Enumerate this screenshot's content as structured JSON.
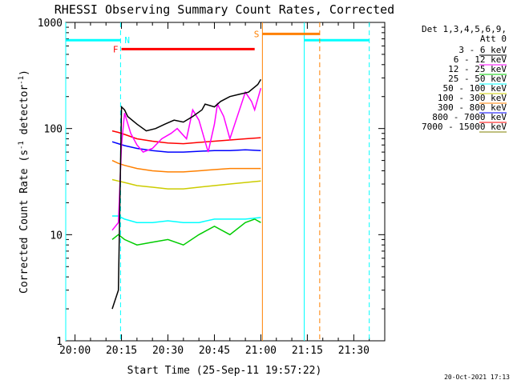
{
  "chart_data": {
    "type": "line",
    "title": "RHESSI Observing Summary Count Rates, Corrected",
    "xlabel": "Start Time (25-Sep-11 19:57:22)",
    "ylabel": "Corrected Count Rate (s⁻¹ detector⁻¹)",
    "ylabel_parts": {
      "a": "Corrected Count Rate (s",
      "exp1": "-1",
      "b": " detector",
      "exp2": "-1",
      "c": ")"
    },
    "footer": "20-Oct-2021 17:13",
    "y_scale": "log",
    "ylim": [
      1,
      1000
    ],
    "xlim_minutes": [
      -3,
      100
    ],
    "x_ticks": [
      {
        "min": 0,
        "label": "20:00"
      },
      {
        "min": 15,
        "label": "20:15"
      },
      {
        "min": 30,
        "label": "20:30"
      },
      {
        "min": 45,
        "label": "20:45"
      },
      {
        "min": 60,
        "label": "21:00"
      },
      {
        "min": 75,
        "label": "21:15"
      },
      {
        "min": 90,
        "label": "21:30"
      }
    ],
    "y_ticks": [
      {
        "v": 1,
        "label": "1"
      },
      {
        "v": 10,
        "label": "10"
      },
      {
        "v": 100,
        "label": "100"
      },
      {
        "v": 1000,
        "label": "1000"
      }
    ],
    "legend": {
      "header": [
        "Det 1,3,4,5,6,9,",
        "Att 0"
      ],
      "position": "right"
    },
    "series": [
      {
        "name": "3 - 6 keV",
        "color": "#000000",
        "x": [
          12,
          14,
          15,
          16,
          17,
          20,
          23,
          26,
          29,
          32,
          35,
          38,
          41,
          42,
          45,
          47,
          50,
          53,
          56,
          59,
          60
        ],
        "y": [
          2,
          3,
          160,
          150,
          130,
          110,
          95,
          100,
          110,
          120,
          115,
          130,
          150,
          170,
          160,
          180,
          200,
          210,
          220,
          260,
          290
        ]
      },
      {
        "name": "6 - 12 keV",
        "color": "#ff00ff",
        "x": [
          12,
          14,
          15,
          16,
          18,
          20,
          22,
          25,
          28,
          31,
          33,
          36,
          38,
          40,
          43,
          45,
          46,
          48,
          50,
          52,
          55,
          57,
          58,
          60
        ],
        "y": [
          11,
          13,
          70,
          140,
          90,
          70,
          60,
          65,
          80,
          90,
          100,
          80,
          150,
          120,
          60,
          110,
          170,
          130,
          80,
          120,
          220,
          180,
          150,
          240
        ]
      },
      {
        "name": "12 - 25 keV",
        "color": "#00cc00",
        "x": [
          12,
          14,
          16,
          20,
          25,
          30,
          35,
          40,
          45,
          50,
          55,
          58,
          60
        ],
        "y": [
          9,
          10,
          9,
          8,
          8.5,
          9,
          8,
          10,
          12,
          10,
          13,
          14,
          13
        ]
      },
      {
        "name": "25 - 50 keV",
        "color": "#00ffff",
        "x": [
          12,
          14,
          16,
          20,
          25,
          30,
          35,
          40,
          45,
          50,
          55,
          60
        ],
        "y": [
          15,
          15,
          14,
          13,
          13,
          13.5,
          13,
          13,
          14,
          14,
          14,
          14.5
        ]
      },
      {
        "name": "50 - 100 keV",
        "color": "#cccc00",
        "x": [
          12,
          14,
          16,
          20,
          25,
          30,
          35,
          40,
          45,
          50,
          55,
          60
        ],
        "y": [
          33,
          32,
          31,
          29,
          28,
          27,
          27,
          28,
          29,
          30,
          31,
          32
        ]
      },
      {
        "name": "100 - 300 keV",
        "color": "#ff8000",
        "x": [
          12,
          14,
          16,
          20,
          25,
          30,
          35,
          40,
          45,
          50,
          55,
          60
        ],
        "y": [
          50,
          47,
          45,
          42,
          40,
          39,
          39,
          40,
          41,
          42,
          42,
          42
        ]
      },
      {
        "name": "300 - 800 keV",
        "color": "#0000ff",
        "x": [
          12,
          14,
          16,
          20,
          25,
          30,
          35,
          40,
          45,
          50,
          55,
          60
        ],
        "y": [
          75,
          72,
          69,
          65,
          62,
          60,
          60,
          61,
          62,
          62,
          63,
          62
        ]
      },
      {
        "name": "800 - 7000 keV",
        "color": "#ff0000",
        "x": [
          12,
          14,
          16,
          20,
          25,
          30,
          35,
          40,
          45,
          50,
          55,
          60
        ],
        "y": [
          95,
          92,
          88,
          80,
          76,
          73,
          72,
          74,
          76,
          78,
          80,
          82
        ]
      },
      {
        "name": "7000 - 15000 keV",
        "color": "#808000",
        "x": [],
        "y": []
      }
    ],
    "annotations": {
      "night_label": "N",
      "flare_label": "F",
      "saa_label": "S",
      "night_bars": [
        {
          "start": -3,
          "end": 14.7,
          "level": 680
        },
        {
          "start": 74,
          "end": 95,
          "level": 680
        }
      ],
      "night_solid_edges": [
        -3,
        74
      ],
      "night_dashed_edges": [
        14.7,
        95
      ],
      "flare_bar": {
        "start": 15,
        "end": 58,
        "level": 560
      },
      "saa_bar": {
        "start": 60.5,
        "end": 79,
        "level": 780
      },
      "saa_solid_edge": 60.5,
      "saa_dashed_edge": 79
    }
  }
}
